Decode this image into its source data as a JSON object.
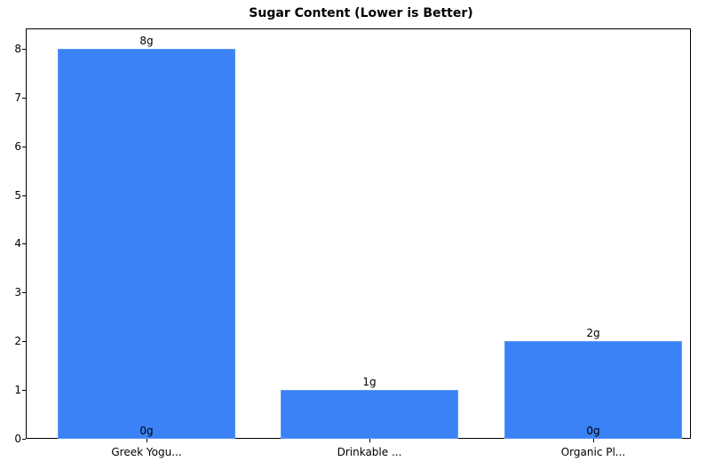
{
  "chart_data": {
    "type": "bar",
    "title": "Sugar Content (Lower is Better)",
    "xlabel": "",
    "ylabel": "",
    "categories": [
      "Greek Yogu...",
      "Drinkable ...",
      "Organic Pl..."
    ],
    "values": [
      8,
      1,
      2
    ],
    "value_labels": [
      "8g",
      "1g",
      "2g"
    ],
    "base_labels": [
      "0g",
      "",
      "0g"
    ],
    "yticks": [
      0,
      1,
      2,
      3,
      4,
      5,
      6,
      7,
      8
    ],
    "ylim": [
      0,
      8.4
    ],
    "grid": false,
    "bar_color": "#3b82f6"
  }
}
